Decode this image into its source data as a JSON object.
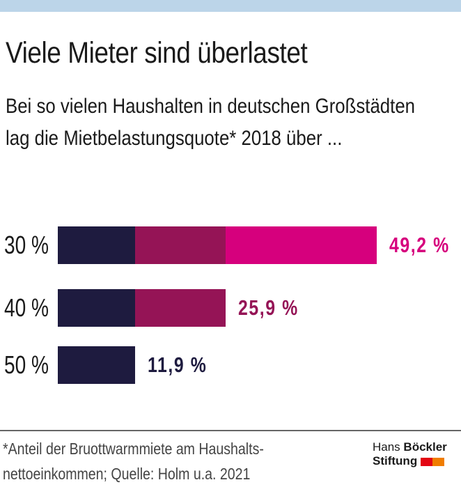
{
  "title": "Viele Mieter sind überlastet",
  "subtitle": "Bei so vielen Haushalten in deutschen Großstädten lag die Mietbelastungsquote* 2018 über ...",
  "footnote": "*Anteil der Bruottwarmmiete am Haushalts-nettoeinkommen; Quelle: Holm u.a. 2021",
  "logo": {
    "line1_light": "Hans",
    "line1_bold": "Böckler",
    "line2": "Stiftung",
    "colors": [
      "#e30613",
      "#f07d00"
    ]
  },
  "chart_data": {
    "type": "bar",
    "orientation": "horizontal",
    "categories": [
      "30 %",
      "40 %",
      "50 %"
    ],
    "values": [
      49.2,
      25.9,
      11.9
    ],
    "value_labels": [
      "49,2 %",
      "25,9 %",
      "11,9 %"
    ],
    "label_colors": [
      "#d6007d",
      "#951456",
      "#1e1b3f"
    ],
    "segment_colors": [
      "#1e1b3f",
      "#951456",
      "#d6007d"
    ],
    "xlim": [
      0,
      49.2
    ],
    "grid": false
  }
}
